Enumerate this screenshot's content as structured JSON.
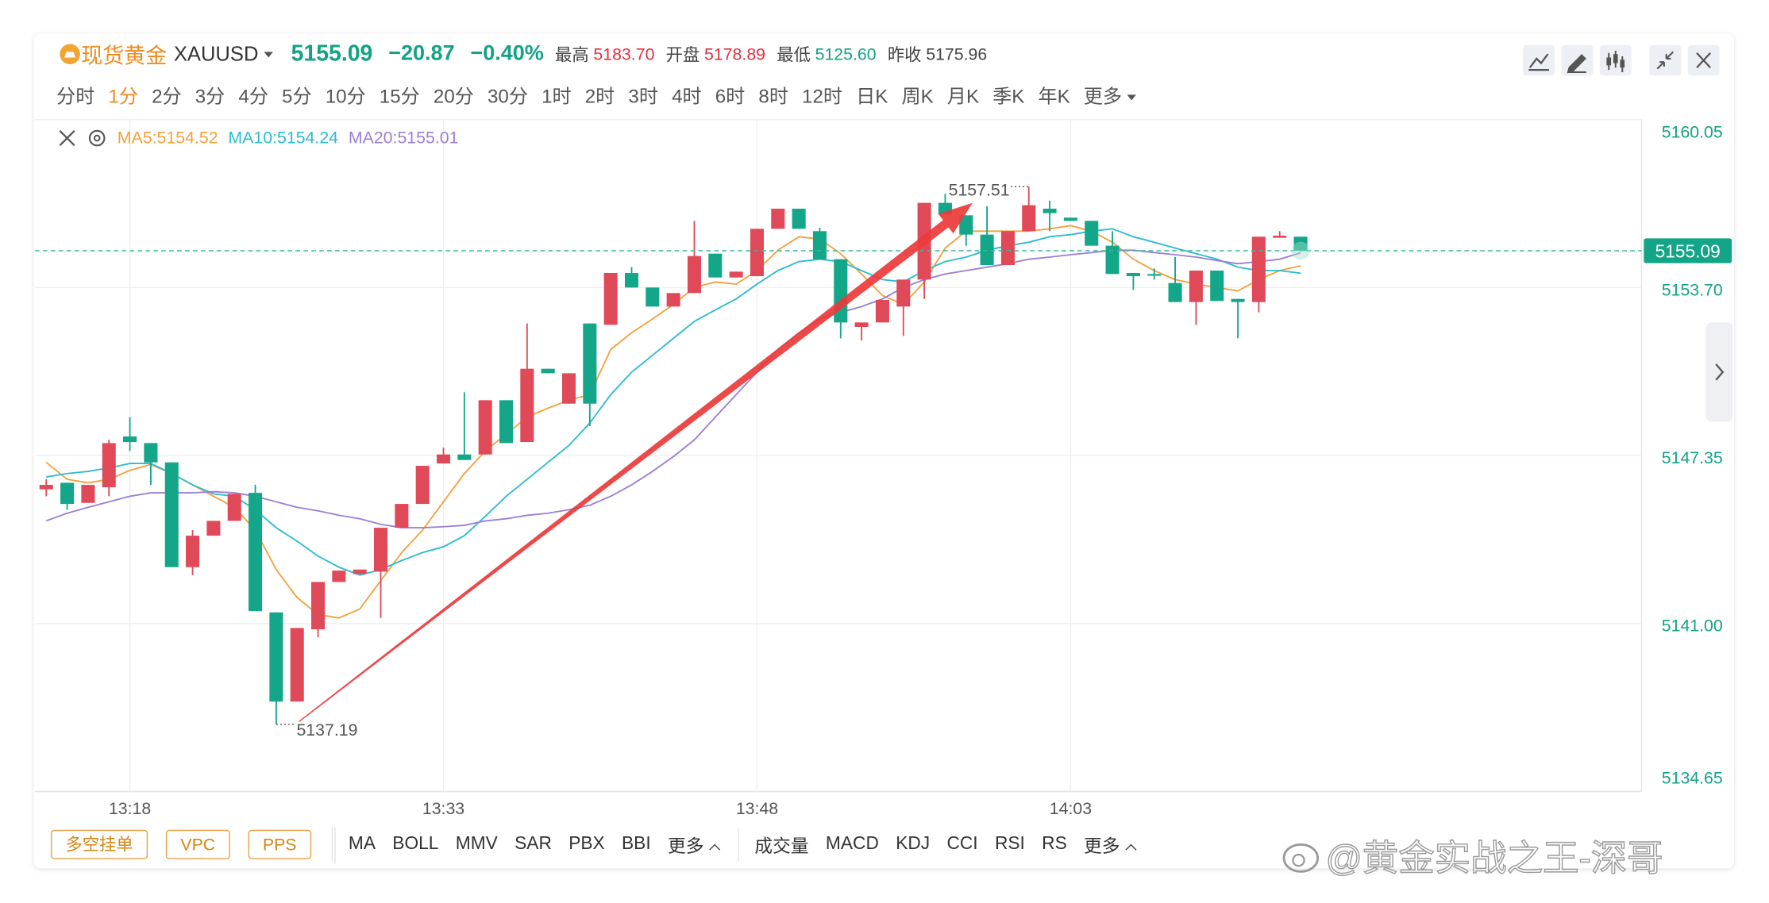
{
  "header": {
    "symbol": "现货黄金",
    "code": "XAUUSD",
    "price": 5155.09,
    "change": "−20.87",
    "change_pct": "−0.40%",
    "stats": [
      {
        "label": "最高",
        "value": "5183.70"
      },
      {
        "label": "开盘",
        "value": "5178.89"
      },
      {
        "label": "最低",
        "value": "5125.60"
      },
      {
        "label": "昨收",
        "value": "5175.96"
      }
    ]
  },
  "timeframes": [
    "分时",
    "1分",
    "2分",
    "3分",
    "4分",
    "5分",
    "10分",
    "15分",
    "20分",
    "30分",
    "1时",
    "2时",
    "3时",
    "4时",
    "6时",
    "8时",
    "12时",
    "日K",
    "周K",
    "月K",
    "季K",
    "年K",
    "更多"
  ],
  "selected_timeframe": "1分",
  "chart_data": {
    "type": "candlestick",
    "categories": [
      null,
      null,
      null,
      null,
      "13:18",
      null,
      null,
      null,
      null,
      null,
      null,
      null,
      null,
      null,
      null,
      null,
      null,
      null,
      null,
      "13:33",
      null,
      null,
      null,
      null,
      null,
      null,
      null,
      null,
      null,
      null,
      null,
      null,
      null,
      null,
      "13:48",
      null,
      null,
      null,
      null,
      null,
      null,
      null,
      null,
      null,
      null,
      null,
      null,
      null,
      null,
      "14:03",
      null,
      null,
      null,
      null,
      null,
      null,
      null,
      null,
      null,
      null,
      null
    ],
    "candles": [
      {
        "open": 5146.07,
        "high": 5146.45,
        "low": 5145.81,
        "close": 5146.24
      },
      {
        "open": 5146.32,
        "high": 5146.32,
        "low": 5145.3,
        "close": 5145.52
      },
      {
        "open": 5145.56,
        "high": 5146.24,
        "low": 5145.56,
        "close": 5146.24
      },
      {
        "open": 5146.15,
        "high": 5147.94,
        "low": 5145.81,
        "close": 5147.82
      },
      {
        "open": 5148.07,
        "high": 5148.8,
        "low": 5147.52,
        "close": 5147.86
      },
      {
        "open": 5147.82,
        "high": 5147.82,
        "low": 5146.24,
        "close": 5147.09
      },
      {
        "open": 5147.09,
        "high": 5147.09,
        "low": 5143.13,
        "close": 5143.13
      },
      {
        "open": 5143.13,
        "high": 5144.53,
        "low": 5142.83,
        "close": 5144.32
      },
      {
        "open": 5144.32,
        "high": 5144.88,
        "low": 5144.32,
        "close": 5144.88
      },
      {
        "open": 5144.88,
        "high": 5145.9,
        "low": 5144.88,
        "close": 5145.9
      },
      {
        "open": 5145.94,
        "high": 5146.24,
        "low": 5141.47,
        "close": 5141.47
      },
      {
        "open": 5141.42,
        "high": 5141.42,
        "low": 5137.19,
        "close": 5138.05
      },
      {
        "open": 5138.05,
        "high": 5140.83,
        "low": 5138.05,
        "close": 5140.83
      },
      {
        "open": 5140.78,
        "high": 5142.57,
        "low": 5140.48,
        "close": 5142.57
      },
      {
        "open": 5142.57,
        "high": 5143.0,
        "low": 5142.57,
        "close": 5143.0
      },
      {
        "open": 5142.87,
        "high": 5143.04,
        "low": 5142.87,
        "close": 5143.04
      },
      {
        "open": 5142.96,
        "high": 5144.62,
        "low": 5141.21,
        "close": 5144.62
      },
      {
        "open": 5144.62,
        "high": 5145.52,
        "low": 5144.62,
        "close": 5145.52
      },
      {
        "open": 5145.52,
        "high": 5146.96,
        "low": 5145.52,
        "close": 5146.96
      },
      {
        "open": 5147.05,
        "high": 5147.65,
        "low": 5147.05,
        "close": 5147.39
      },
      {
        "open": 5147.39,
        "high": 5149.74,
        "low": 5147.18,
        "close": 5147.18
      },
      {
        "open": 5147.39,
        "high": 5149.44,
        "low": 5147.39,
        "close": 5149.44
      },
      {
        "open": 5149.44,
        "high": 5149.44,
        "low": 5147.82,
        "close": 5147.82
      },
      {
        "open": 5147.86,
        "high": 5152.34,
        "low": 5147.86,
        "close": 5150.63
      },
      {
        "open": 5150.63,
        "high": 5150.63,
        "low": 5150.46,
        "close": 5150.46
      },
      {
        "open": 5149.31,
        "high": 5150.46,
        "low": 5149.31,
        "close": 5150.46
      },
      {
        "open": 5152.34,
        "high": 5152.34,
        "low": 5148.46,
        "close": 5149.31
      },
      {
        "open": 5152.29,
        "high": 5154.25,
        "low": 5152.29,
        "close": 5154.25
      },
      {
        "open": 5154.25,
        "high": 5154.47,
        "low": 5153.7,
        "close": 5153.7
      },
      {
        "open": 5153.7,
        "high": 5153.7,
        "low": 5152.98,
        "close": 5152.98
      },
      {
        "open": 5152.98,
        "high": 5153.49,
        "low": 5152.98,
        "close": 5153.49
      },
      {
        "open": 5153.49,
        "high": 5156.22,
        "low": 5153.49,
        "close": 5154.89
      },
      {
        "open": 5154.98,
        "high": 5154.98,
        "low": 5154.08,
        "close": 5154.08
      },
      {
        "open": 5154.08,
        "high": 5154.3,
        "low": 5154.08,
        "close": 5154.3
      },
      {
        "open": 5154.13,
        "high": 5155.92,
        "low": 5154.13,
        "close": 5155.92
      },
      {
        "open": 5155.92,
        "high": 5156.68,
        "low": 5155.92,
        "close": 5156.68
      },
      {
        "open": 5156.68,
        "high": 5156.68,
        "low": 5155.92,
        "close": 5155.92
      },
      {
        "open": 5155.83,
        "high": 5155.96,
        "low": 5154.77,
        "close": 5154.77
      },
      {
        "open": 5154.77,
        "high": 5154.77,
        "low": 5151.78,
        "close": 5152.38
      },
      {
        "open": 5152.21,
        "high": 5152.38,
        "low": 5151.7,
        "close": 5152.38
      },
      {
        "open": 5152.38,
        "high": 5153.23,
        "low": 5152.38,
        "close": 5153.23
      },
      {
        "open": 5152.98,
        "high": 5154.0,
        "low": 5151.87,
        "close": 5154.0
      },
      {
        "open": 5154.0,
        "high": 5156.9,
        "low": 5153.27,
        "close": 5156.9
      },
      {
        "open": 5156.9,
        "high": 5157.24,
        "low": 5156.47,
        "close": 5156.47
      },
      {
        "open": 5156.43,
        "high": 5156.43,
        "low": 5155.28,
        "close": 5155.7
      },
      {
        "open": 5155.7,
        "high": 5156.77,
        "low": 5154.55,
        "close": 5154.55
      },
      {
        "open": 5154.55,
        "high": 5155.83,
        "low": 5154.55,
        "close": 5155.83
      },
      {
        "open": 5155.83,
        "high": 5157.51,
        "low": 5155.83,
        "close": 5156.81
      },
      {
        "open": 5156.68,
        "high": 5156.98,
        "low": 5155.83,
        "close": 5156.51
      },
      {
        "open": 5156.34,
        "high": 5156.34,
        "low": 5156.22,
        "close": 5156.22
      },
      {
        "open": 5156.22,
        "high": 5156.22,
        "low": 5155.28,
        "close": 5155.28
      },
      {
        "open": 5155.28,
        "high": 5155.83,
        "low": 5154.21,
        "close": 5154.21
      },
      {
        "open": 5154.25,
        "high": 5154.25,
        "low": 5153.61,
        "close": 5154.13
      },
      {
        "open": 5154.21,
        "high": 5154.42,
        "low": 5154.0,
        "close": 5154.19
      },
      {
        "open": 5153.87,
        "high": 5154.85,
        "low": 5153.15,
        "close": 5153.15
      },
      {
        "open": 5153.15,
        "high": 5154.34,
        "low": 5152.29,
        "close": 5154.34
      },
      {
        "open": 5154.34,
        "high": 5154.34,
        "low": 5153.19,
        "close": 5153.19
      },
      {
        "open": 5153.27,
        "high": 5153.27,
        "low": 5151.78,
        "close": 5153.15
      },
      {
        "open": 5153.15,
        "high": 5155.62,
        "low": 5152.76,
        "close": 5155.62
      },
      {
        "open": 5155.58,
        "high": 5155.83,
        "low": 5155.58,
        "close": 5155.66
      },
      {
        "open": 5155.62,
        "high": 5155.62,
        "low": 5155.09,
        "close": 5155.09
      }
    ],
    "up_color": "#e04a58",
    "down_color": "#14a689",
    "series": [
      {
        "name": "MA5",
        "color": "#f5a03c",
        "values": [
          5147.09,
          5146.45,
          5146.32,
          5146.45,
          5146.79,
          5147.01,
          5146.67,
          5146.24,
          5145.81,
          5145.39,
          5144.53,
          5143.04,
          5141.98,
          5141.34,
          5141.21,
          5141.55,
          5142.62,
          5143.68,
          5144.53,
          5145.6,
          5146.67,
          5147.52,
          5148.16,
          5148.8,
          5149.14,
          5149.44,
          5149.65,
          5151.36,
          5151.99,
          5152.51,
          5153.06,
          5153.7,
          5153.91,
          5153.83,
          5154.34,
          5155.11,
          5155.62,
          5155.53,
          5154.98,
          5154.21,
          5153.4,
          5153.06,
          5153.91,
          5155.19,
          5155.83,
          5155.83,
          5155.83,
          5155.83,
          5155.92,
          5156.04,
          5155.83,
          5155.41,
          5154.77,
          5154.34,
          5154.0,
          5153.83,
          5153.7,
          5153.57,
          5154.0,
          5154.34,
          5154.52
        ]
      },
      {
        "name": "MA10",
        "color": "#2bbcd0",
        "values": [
          5146.54,
          5146.67,
          5146.75,
          5146.88,
          5147.05,
          5147.05,
          5146.67,
          5146.24,
          5145.9,
          5145.81,
          5145.3,
          5144.62,
          5144.11,
          5143.55,
          5143.13,
          5142.83,
          5143.04,
          5143.38,
          5143.68,
          5143.9,
          5144.32,
          5145.05,
          5145.81,
          5146.45,
          5147.09,
          5147.73,
          5148.58,
          5149.65,
          5150.5,
          5151.14,
          5151.78,
          5152.42,
          5152.85,
          5153.27,
          5153.83,
          5154.34,
          5154.68,
          5154.77,
          5154.68,
          5154.34,
          5154.0,
          5153.91,
          5154.34,
          5154.68,
          5154.85,
          5155.11,
          5155.28,
          5155.41,
          5155.62,
          5155.7,
          5155.83,
          5155.92,
          5155.62,
          5155.41,
          5155.19,
          5154.98,
          5154.77,
          5154.47,
          5154.34,
          5154.34,
          5154.24
        ]
      },
      {
        "name": "MA20",
        "color": "#9b7fd6",
        "values": [
          5144.88,
          5145.17,
          5145.39,
          5145.6,
          5145.81,
          5145.94,
          5145.94,
          5145.94,
          5145.98,
          5145.94,
          5145.81,
          5145.6,
          5145.39,
          5145.26,
          5145.09,
          5144.96,
          5144.75,
          5144.62,
          5144.62,
          5144.66,
          5144.71,
          5144.88,
          5144.96,
          5145.09,
          5145.17,
          5145.3,
          5145.47,
          5145.81,
          5146.24,
          5146.75,
          5147.31,
          5147.94,
          5148.8,
          5149.65,
          5150.5,
          5151.36,
          5151.99,
          5152.51,
          5152.76,
          5152.98,
          5153.27,
          5153.7,
          5154.0,
          5154.21,
          5154.34,
          5154.47,
          5154.6,
          5154.77,
          5154.85,
          5154.94,
          5155.02,
          5155.11,
          5155.11,
          5155.02,
          5154.94,
          5154.85,
          5154.72,
          5154.6,
          5154.68,
          5154.77,
          5155.01
        ]
      }
    ],
    "ylim": [
      5134.65,
      5160.05
    ],
    "yticks": [
      5134.65,
      {
        "value": 5141,
        "label": "5141.00"
      },
      5147.35,
      {
        "value": 5153.7,
        "label": "5153.70"
      },
      5160.05
    ],
    "last_price": 5155.09,
    "grid": true
  },
  "tools": [
    "多空挂单",
    "VPC",
    "PPS"
  ],
  "main_indicators": [
    "MA",
    "BOLL",
    "MMV",
    "SAR",
    "PBX",
    "BBI",
    "更多"
  ],
  "sub_indicators": [
    "成交量",
    "MACD",
    "KDJ",
    "CCI",
    "RSI",
    "RS",
    "更多"
  ],
  "watermark": "@黄金实战之王-深哥"
}
